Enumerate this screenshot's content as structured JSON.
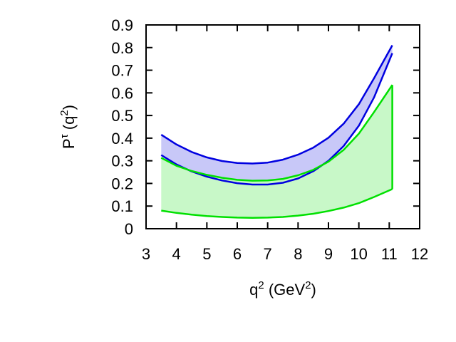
{
  "chart_data": {
    "type": "area",
    "xlabel": {
      "base": "q",
      "sup": "2",
      "rest": " (GeV",
      "sup2": "2",
      "end": ")"
    },
    "ylabel": {
      "base": "P",
      "sup": "τ",
      "rest": " (q",
      "sup2": "2",
      "end": ")"
    },
    "xlim": [
      3,
      12
    ],
    "ylim": [
      0,
      0.9
    ],
    "xticks": [
      "3",
      "4",
      "5",
      "6",
      "7",
      "8",
      "9",
      "10",
      "11",
      "12"
    ],
    "yticks": [
      "0",
      "0.1",
      "0.2",
      "0.3",
      "0.4",
      "0.5",
      "0.6",
      "0.7",
      "0.8",
      "0.9"
    ],
    "grid": false,
    "series": [
      {
        "color": "#0000e0",
        "fill": "#c8c8f8",
        "upper": {
          "x": [
            3.5,
            4.0,
            4.5,
            5.0,
            5.5,
            6.0,
            6.5,
            7.0,
            7.5,
            8.0,
            8.5,
            9.0,
            9.5,
            10.0,
            10.5,
            11.1
          ],
          "y": [
            0.415,
            0.372,
            0.339,
            0.315,
            0.299,
            0.29,
            0.288,
            0.292,
            0.305,
            0.327,
            0.358,
            0.402,
            0.464,
            0.55,
            0.665,
            0.81
          ]
        },
        "lower": {
          "x": [
            3.5,
            4.0,
            4.5,
            5.0,
            5.5,
            6.0,
            6.5,
            7.0,
            7.5,
            8.0,
            8.5,
            9.0,
            9.5,
            10.0,
            10.5,
            11.1
          ],
          "y": [
            0.325,
            0.284,
            0.253,
            0.23,
            0.213,
            0.201,
            0.195,
            0.195,
            0.203,
            0.222,
            0.254,
            0.3,
            0.365,
            0.455,
            0.58,
            0.775
          ]
        }
      },
      {
        "color": "#00e000",
        "fill": "#c8f8c8",
        "upper": {
          "x": [
            3.5,
            4.0,
            4.5,
            5.0,
            5.5,
            6.0,
            6.5,
            7.0,
            7.5,
            8.0,
            8.5,
            9.0,
            9.5,
            10.0,
            10.5,
            11.1
          ],
          "y": [
            0.313,
            0.278,
            0.255,
            0.238,
            0.225,
            0.216,
            0.212,
            0.213,
            0.22,
            0.236,
            0.26,
            0.296,
            0.348,
            0.42,
            0.515,
            0.635
          ]
        },
        "lower": {
          "x": [
            3.5,
            4.0,
            4.5,
            5.0,
            5.5,
            6.0,
            6.5,
            7.0,
            7.5,
            8.0,
            8.5,
            9.0,
            9.5,
            10.0,
            10.5,
            11.1
          ],
          "y": [
            0.08,
            0.07,
            0.062,
            0.056,
            0.052,
            0.049,
            0.048,
            0.049,
            0.052,
            0.058,
            0.066,
            0.078,
            0.093,
            0.113,
            0.14,
            0.175
          ]
        }
      }
    ]
  }
}
